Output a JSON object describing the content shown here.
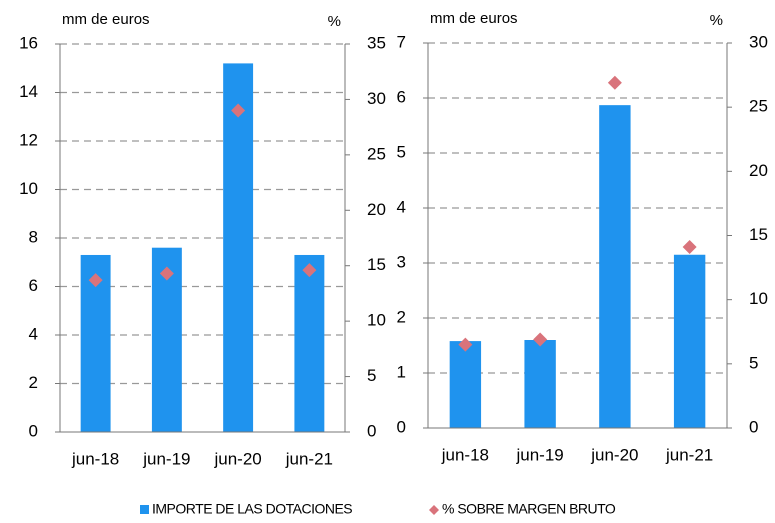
{
  "chart_data": [
    {
      "type": "bar",
      "y_label": "mm de euros",
      "y2_label": "%",
      "categories": [
        "jun-18",
        "jun-19",
        "jun-20",
        "jun-21"
      ],
      "series": [
        {
          "name": "IMPORTE DE LAS DOTACIONES",
          "color": "#1f93ee",
          "values": [
            7.3,
            7.6,
            15.2,
            7.3
          ]
        },
        {
          "name": "% SOBRE MARGEN BRUTO",
          "color": "#d9737b",
          "type": "scatter",
          "axis": "y2",
          "values": [
            13.7,
            14.3,
            29.0,
            14.6
          ]
        }
      ],
      "ylim": [
        0,
        16
      ],
      "yticks": [
        0,
        2,
        4,
        6,
        8,
        10,
        12,
        14,
        16
      ],
      "y2lim": [
        0,
        35
      ],
      "y2ticks": [
        0,
        5,
        10,
        15,
        20,
        25,
        30,
        35
      ],
      "grid": true
    },
    {
      "type": "bar",
      "y_label": "mm de euros",
      "y2_label": "%",
      "categories": [
        "jun-18",
        "jun-19",
        "jun-20",
        "jun-21"
      ],
      "series": [
        {
          "name": "IMPORTE DE LAS DOTACIONES",
          "color": "#1f93ee",
          "values": [
            1.58,
            1.6,
            5.87,
            3.15
          ]
        },
        {
          "name": "% SOBRE MARGEN BRUTO",
          "color": "#d9737b",
          "type": "scatter",
          "axis": "y2",
          "values": [
            6.5,
            6.9,
            26.9,
            14.1
          ]
        }
      ],
      "ylim": [
        0,
        7
      ],
      "yticks": [
        0,
        1,
        2,
        3,
        4,
        5,
        6,
        7
      ],
      "y2lim": [
        0,
        30
      ],
      "y2ticks": [
        0,
        5,
        10,
        15,
        20,
        25,
        30
      ],
      "grid": true
    }
  ]
}
